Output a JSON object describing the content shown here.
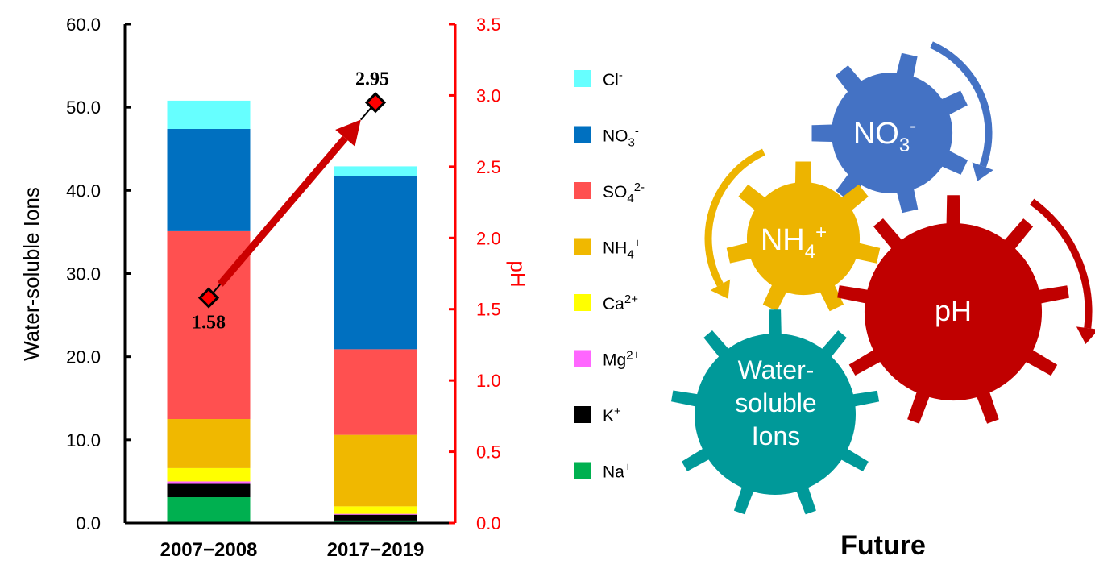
{
  "chart_data": {
    "type": "bar",
    "subtype": "stacked-bar-with-line",
    "categories": [
      "2007−2008",
      "2017−2019"
    ],
    "ylabel": "Water-soluble Ions",
    "ylim": [
      0,
      60
    ],
    "yticks": [
      "0.0",
      "10.0",
      "20.0",
      "30.0",
      "40.0",
      "50.0",
      "60.0"
    ],
    "y2label": "pH",
    "y2lim": [
      0,
      3.5
    ],
    "y2ticks": [
      "0.0",
      "0.5",
      "1.0",
      "1.5",
      "2.0",
      "2.5",
      "3.0",
      "3.5"
    ],
    "y2color": "#ff0000",
    "grid": false,
    "legend_position": "right",
    "series": [
      {
        "name": "Na+",
        "label_base": "Na",
        "sub": "",
        "sup": "+",
        "color": "#00b050",
        "values": [
          3.1,
          0.3
        ]
      },
      {
        "name": "K+",
        "label_base": "K",
        "sub": "",
        "sup": "+",
        "color": "#000000",
        "values": [
          1.6,
          0.7
        ]
      },
      {
        "name": "Mg2+",
        "label_base": "Mg",
        "sub": "",
        "sup": "2+",
        "color": "#ff66ff",
        "values": [
          0.3,
          0.1
        ]
      },
      {
        "name": "Ca2+",
        "label_base": "Ca",
        "sub": "",
        "sup": "2+",
        "color": "#ffff00",
        "values": [
          1.6,
          0.9
        ]
      },
      {
        "name": "NH4+",
        "label_base": "NH",
        "sub": "4",
        "sup": "+",
        "color": "#f0b800",
        "values": [
          5.9,
          8.6
        ]
      },
      {
        "name": "SO42-",
        "label_base": "SO",
        "sub": "4",
        "sup": "2-",
        "color": "#ff5050",
        "values": [
          22.6,
          10.3
        ]
      },
      {
        "name": "NO3-",
        "label_base": "NO",
        "sub": "3",
        "sup": "-",
        "color": "#0070c0",
        "values": [
          12.3,
          20.8
        ]
      },
      {
        "name": "Cl-",
        "label_base": "Cl",
        "sub": "",
        "sup": "-",
        "color": "#66ffff",
        "values": [
          3.4,
          1.2
        ]
      }
    ],
    "line_series": {
      "name": "pH",
      "axis": "right",
      "values": [
        1.58,
        2.95
      ],
      "labels": [
        "1.58",
        "2.95"
      ],
      "marker": "diamond",
      "marker_color": "#ff0000",
      "arrow_color": "#cc0000"
    }
  },
  "diagram": {
    "gears": [
      {
        "id": "no3",
        "label_base": "NO",
        "sub": "3",
        "sup": "-",
        "color": "#4472c4"
      },
      {
        "id": "nh4",
        "label_base": "NH",
        "sub": "4",
        "sup": "+",
        "color": "#edb400"
      },
      {
        "id": "ph",
        "label_lines": [
          "pH"
        ],
        "color": "#c00000"
      },
      {
        "id": "wsi",
        "label_lines": [
          "Water-",
          "soluble",
          "Ions"
        ],
        "color": "#009999"
      }
    ],
    "caption": "Future"
  }
}
